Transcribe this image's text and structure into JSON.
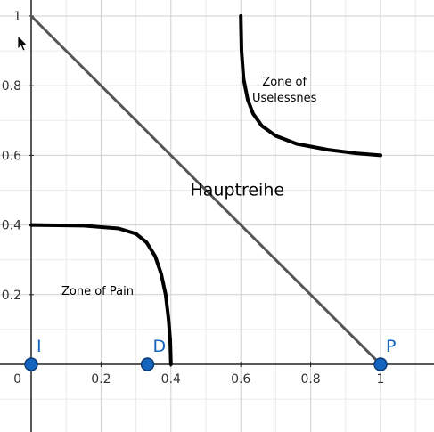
{
  "chart_data": {
    "type": "line",
    "title": "",
    "xlabel": "",
    "ylabel": "",
    "xlim": [
      -0.05,
      1.15
    ],
    "ylim": [
      -0.2,
      1.04
    ],
    "grid": true,
    "x_ticks": [
      {
        "value": 0.2,
        "label": "0.2"
      },
      {
        "value": 0.4,
        "label": "0.4"
      },
      {
        "value": 0.6,
        "label": "0.6"
      },
      {
        "value": 0.8,
        "label": "0.8"
      },
      {
        "value": 1,
        "label": "1"
      }
    ],
    "y_ticks": [
      {
        "value": 1,
        "label": "1"
      },
      {
        "value": 0.8,
        "label": "0.8"
      },
      {
        "value": 0.6,
        "label": "0.6"
      },
      {
        "value": 0.4,
        "label": "0.4"
      },
      {
        "value": 0.2,
        "label": "0.2"
      }
    ],
    "origin_label": "0",
    "lines": [
      {
        "id": "main-sequence",
        "color": "#555555",
        "points": [
          [
            0,
            1
          ],
          [
            1,
            0
          ]
        ]
      },
      {
        "id": "zone-of-pain-curve",
        "color": "#000000",
        "points": [
          [
            0,
            0.4
          ],
          [
            0.15,
            0.398
          ],
          [
            0.25,
            0.39
          ],
          [
            0.3,
            0.375
          ],
          [
            0.33,
            0.35
          ],
          [
            0.355,
            0.31
          ],
          [
            0.372,
            0.26
          ],
          [
            0.385,
            0.2
          ],
          [
            0.393,
            0.13
          ],
          [
            0.398,
            0.07
          ],
          [
            0.4,
            0
          ]
        ]
      },
      {
        "id": "zone-of-uselessness-curve",
        "color": "#000000",
        "points": [
          [
            0.6,
            1
          ],
          [
            0.602,
            0.9
          ],
          [
            0.608,
            0.82
          ],
          [
            0.62,
            0.76
          ],
          [
            0.635,
            0.72
          ],
          [
            0.66,
            0.685
          ],
          [
            0.7,
            0.656
          ],
          [
            0.76,
            0.633
          ],
          [
            0.85,
            0.616
          ],
          [
            0.93,
            0.606
          ],
          [
            1,
            0.6
          ]
        ]
      }
    ],
    "points": [
      {
        "name": "I",
        "x": 0,
        "y": 0,
        "color": "#1565c0"
      },
      {
        "name": "D",
        "x": 0.333,
        "y": 0,
        "color": "#1565c0"
      },
      {
        "name": "P",
        "x": 1,
        "y": 0,
        "color": "#1565c0"
      }
    ],
    "annotations": [
      {
        "id": "zone-of-uselessness-label",
        "lines": [
          "Zone of",
          "Uselessnes"
        ],
        "x": 0.725,
        "y": 0.8,
        "style": "small"
      },
      {
        "id": "main-sequence-label",
        "lines": [
          "Hauptreihe"
        ],
        "x": 0.59,
        "y": 0.485,
        "style": "big"
      },
      {
        "id": "zone-of-pain-label",
        "lines": [
          "Zone of Pain"
        ],
        "x": 0.19,
        "y": 0.2,
        "style": "small"
      }
    ]
  }
}
